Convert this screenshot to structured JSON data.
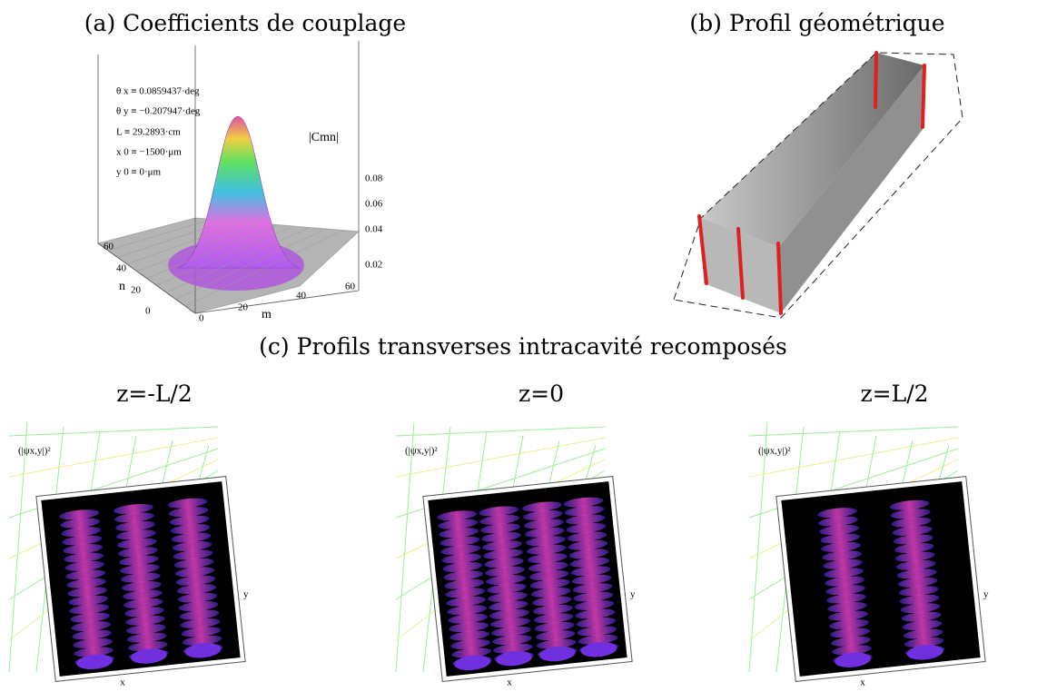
{
  "panels": [
    {
      "title": "(a) Coefficients de couplage",
      "annotations": [
        "θ x ≡ 0.0859437·deg",
        "θ y ≡ −0.207947·deg",
        "L ≡ 29.2893·cm",
        "x 0 ≡ −1500·μm",
        "y 0 ≡ 0·μm"
      ],
      "z_label": "|Cmn|",
      "z_ticks": [
        "0.08",
        "0.06",
        "0.04",
        "0.02"
      ],
      "n_label": "n",
      "n_ticks": [
        "60",
        "40",
        "20",
        "0"
      ],
      "m_label": "m",
      "m_ticks": [
        "0",
        "20",
        "40",
        "60"
      ]
    },
    {
      "title": "(b) Profil géométrique"
    }
  ],
  "section_title": "(c) Profils transverses intracavité recomposés",
  "subplots": [
    {
      "title": "z=-L/2",
      "z_label": "(|ψx,y|)²",
      "x_label": "x",
      "y_label": "y"
    },
    {
      "title": "z=0",
      "z_label": "(|ψx,y|)²",
      "x_label": "x",
      "y_label": "y"
    },
    {
      "title": "z=L/2",
      "z_label": "(|ψx,y|)²",
      "x_label": "x",
      "y_label": "y"
    }
  ]
}
